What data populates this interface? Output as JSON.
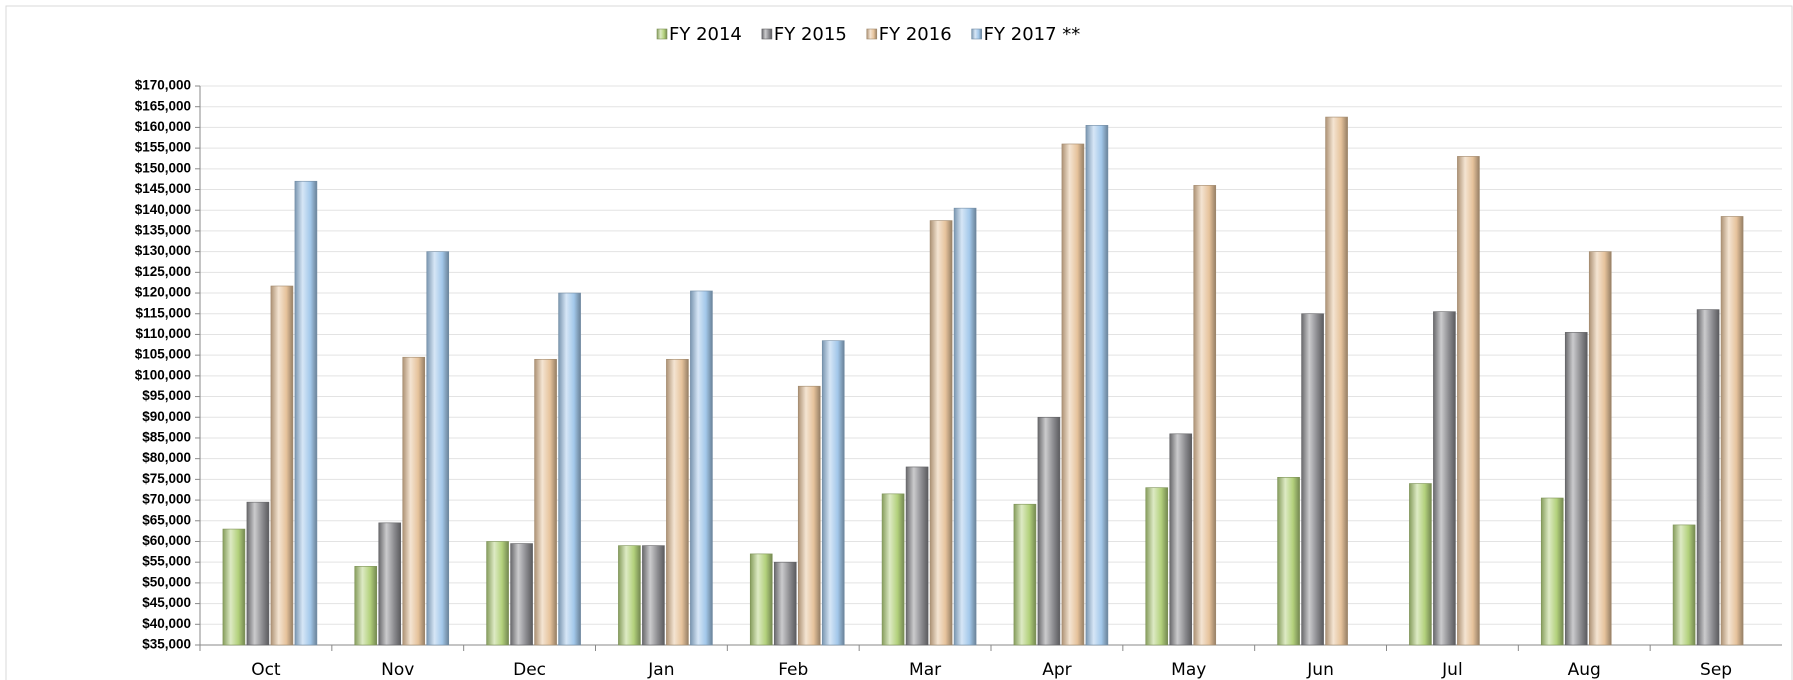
{
  "chart_data": {
    "type": "bar",
    "categories": [
      "Oct",
      "Nov",
      "Dec",
      "Jan",
      "Feb",
      "Mar",
      "Apr",
      "May",
      "Jun",
      "Jul",
      "Aug",
      "Sep"
    ],
    "series": [
      {
        "name": "FY 2014",
        "color": "#b3d17c",
        "values": [
          63000,
          54000,
          60000,
          59000,
          57000,
          71500,
          69000,
          73000,
          75500,
          74000,
          70500,
          64000
        ]
      },
      {
        "name": "FY 2015",
        "color": "#8c8c90",
        "values": [
          69500,
          64500,
          59500,
          59000,
          55000,
          78000,
          90000,
          86000,
          115000,
          115500,
          110500,
          116000
        ]
      },
      {
        "name": "FY 2016",
        "color": "#e6c39c",
        "values": [
          121700,
          104500,
          104000,
          104000,
          97500,
          137500,
          156000,
          146000,
          162500,
          153000,
          130000,
          138500
        ]
      },
      {
        "name": "FY 2017 **",
        "color": "#a3c8ea",
        "values": [
          147000,
          130000,
          120000,
          120500,
          108500,
          140500,
          160500,
          null,
          null,
          null,
          null,
          null
        ]
      }
    ],
    "ylim": [
      35000,
      170000
    ],
    "yticks": [
      {
        "value": 35000,
        "label": "$35,000"
      },
      {
        "value": 40000,
        "label": "$40,000"
      },
      {
        "value": 45000,
        "label": "$45,000"
      },
      {
        "value": 50000,
        "label": "$50,000"
      },
      {
        "value": 55000,
        "label": "$55,000"
      },
      {
        "value": 60000,
        "label": "$60,000"
      },
      {
        "value": 65000,
        "label": "$65,000"
      },
      {
        "value": 70000,
        "label": "$70,000"
      },
      {
        "value": 75000,
        "label": "$75,000"
      },
      {
        "value": 80000,
        "label": "$80,000"
      },
      {
        "value": 85000,
        "label": "$85,000"
      },
      {
        "value": 90000,
        "label": "$90,000"
      },
      {
        "value": 95000,
        "label": "$95,000"
      },
      {
        "value": 100000,
        "label": "$100,000"
      },
      {
        "value": 105000,
        "label": "$105,000"
      },
      {
        "value": 110000,
        "label": "$110,000"
      },
      {
        "value": 115000,
        "label": "$115,000"
      },
      {
        "value": 120000,
        "label": "$120,000"
      },
      {
        "value": 125000,
        "label": "$125,000"
      },
      {
        "value": 130000,
        "label": "$130,000"
      },
      {
        "value": 135000,
        "label": "$135,000"
      },
      {
        "value": 140000,
        "label": "$140,000"
      },
      {
        "value": 145000,
        "label": "$145,000"
      },
      {
        "value": 150000,
        "label": "$150,000"
      },
      {
        "value": 155000,
        "label": "$155,000"
      },
      {
        "value": 160000,
        "label": "$160,000"
      },
      {
        "value": 165000,
        "label": "$165,000"
      },
      {
        "value": 170000,
        "label": "$170,000"
      }
    ],
    "grid": true,
    "legend": "top"
  }
}
